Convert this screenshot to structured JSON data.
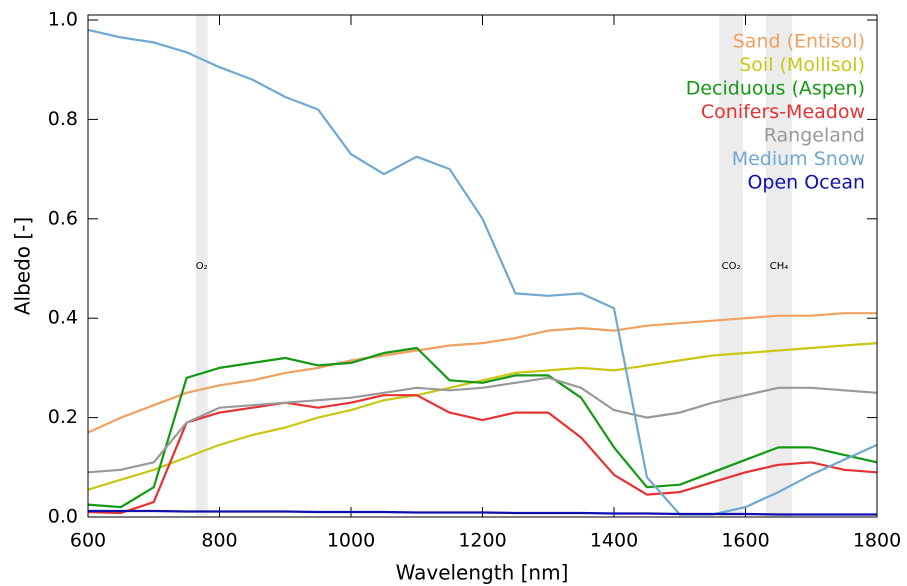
{
  "chart_data": {
    "type": "line",
    "xlabel": "Wavelength [nm]",
    "ylabel": "Albedo [-]",
    "x": [
      600,
      650,
      700,
      750,
      800,
      850,
      900,
      950,
      1000,
      1050,
      1100,
      1150,
      1200,
      1250,
      1300,
      1350,
      1400,
      1450,
      1500,
      1550,
      1600,
      1650,
      1700,
      1750,
      1800
    ],
    "series": [
      {
        "name": "Sand (Entisol)",
        "color": "#f0a060",
        "values": [
          0.17,
          0.2,
          0.225,
          0.25,
          0.265,
          0.275,
          0.29,
          0.3,
          0.315,
          0.325,
          0.335,
          0.345,
          0.35,
          0.36,
          0.375,
          0.38,
          0.375,
          0.385,
          0.39,
          0.395,
          0.4,
          0.405,
          0.405,
          0.41,
          0.41
        ]
      },
      {
        "name": "Soil (Mollisol)",
        "color": "#c8c814",
        "values": [
          0.055,
          0.075,
          0.095,
          0.12,
          0.145,
          0.165,
          0.18,
          0.2,
          0.215,
          0.235,
          0.245,
          0.26,
          0.275,
          0.29,
          0.295,
          0.3,
          0.295,
          0.305,
          0.315,
          0.325,
          0.33,
          0.335,
          0.34,
          0.345,
          0.35
        ]
      },
      {
        "name": "Deciduous (Aspen)",
        "color": "#139913",
        "values": [
          0.025,
          0.02,
          0.06,
          0.28,
          0.3,
          0.31,
          0.32,
          0.305,
          0.31,
          0.33,
          0.34,
          0.275,
          0.27,
          0.285,
          0.285,
          0.24,
          0.14,
          0.06,
          0.065,
          0.09,
          0.115,
          0.14,
          0.14,
          0.125,
          0.11
        ]
      },
      {
        "name": "Conifers-Meadow",
        "color": "#e63232",
        "values": [
          0.01,
          0.008,
          0.03,
          0.19,
          0.21,
          0.22,
          0.23,
          0.22,
          0.23,
          0.245,
          0.245,
          0.21,
          0.195,
          0.21,
          0.21,
          0.16,
          0.085,
          0.045,
          0.05,
          0.07,
          0.09,
          0.105,
          0.11,
          0.095,
          0.09
        ]
      },
      {
        "name": "Rangeland",
        "color": "#999999",
        "values": [
          0.09,
          0.095,
          0.11,
          0.19,
          0.22,
          0.225,
          0.23,
          0.235,
          0.24,
          0.25,
          0.26,
          0.255,
          0.26,
          0.27,
          0.28,
          0.26,
          0.215,
          0.2,
          0.21,
          0.23,
          0.245,
          0.26,
          0.26,
          0.255,
          0.25
        ]
      },
      {
        "name": "Medium Snow",
        "color": "#6fa8d0",
        "values": [
          0.98,
          0.965,
          0.955,
          0.935,
          0.905,
          0.88,
          0.845,
          0.82,
          0.73,
          0.69,
          0.725,
          0.7,
          0.6,
          0.45,
          0.445,
          0.45,
          0.42,
          0.08,
          0.005,
          0.005,
          0.02,
          0.05,
          0.085,
          0.115,
          0.145
        ]
      },
      {
        "name": "Open Ocean",
        "color": "#1010b0",
        "values": [
          0.012,
          0.012,
          0.012,
          0.011,
          0.011,
          0.011,
          0.011,
          0.01,
          0.01,
          0.01,
          0.009,
          0.009,
          0.009,
          0.008,
          0.008,
          0.008,
          0.007,
          0.007,
          0.006,
          0.006,
          0.006,
          0.005,
          0.005,
          0.005,
          0.005
        ]
      }
    ],
    "bands": [
      {
        "label": "O₂",
        "x": [
          764,
          782
        ]
      },
      {
        "label": "CO₂",
        "x": [
          1560,
          1596
        ]
      },
      {
        "label": "CH₄",
        "x": [
          1631,
          1671
        ]
      }
    ],
    "band_color": "#ececec",
    "xlim": [
      600,
      1800
    ],
    "xticks": [
      600,
      800,
      1000,
      1200,
      1400,
      1600,
      1800
    ],
    "ylim": [
      0,
      1.0
    ],
    "yticks": [
      {
        "value": 0,
        "label": "0.0"
      },
      0.2,
      0.4,
      0.6,
      0.8,
      {
        "value": 1.0,
        "label": "1.0"
      }
    ],
    "grid": false,
    "legend": "upper right"
  }
}
